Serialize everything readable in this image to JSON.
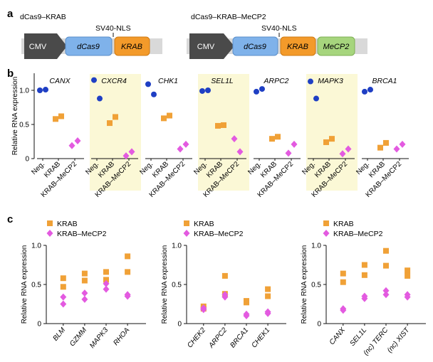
{
  "colors": {
    "neg": "#1f3fc4",
    "krab": "#f0a137",
    "mecp2": "#e35ae0",
    "highlight": "#fbf8d6",
    "cmv": "#4a4a4a",
    "dcas9": "#7fb2ea",
    "krab_box": "#f39a2a",
    "mecp2_box": "#a6d57d",
    "backbone": "#d9d9d9"
  },
  "panel_a": {
    "label": "a",
    "constructs": [
      {
        "title": "dCas9–KRAB",
        "nls_label": "SV40-NLS",
        "parts": [
          {
            "name": "CMV",
            "type": "promoter"
          },
          {
            "name": "dCas9",
            "type": "dcas9"
          },
          {
            "name": "KRAB",
            "type": "krab"
          }
        ]
      },
      {
        "title": "dCas9–KRAB–MeCP2",
        "nls_label": "SV40-NLS",
        "parts": [
          {
            "name": "CMV",
            "type": "promoter"
          },
          {
            "name": "dCas9",
            "type": "dcas9"
          },
          {
            "name": "KRAB",
            "type": "krab"
          },
          {
            "name": "MeCP2",
            "type": "mecp2"
          }
        ]
      }
    ]
  },
  "chart_data": [
    {
      "panel": "b",
      "type": "scatter",
      "ylabel": "Relative RNA expression",
      "ylim": [
        0,
        1.25
      ],
      "yticks": [
        "0",
        "0.5",
        "1.0"
      ],
      "categories": [
        "Neg.",
        "KRAB",
        "KRAB–MeCP2"
      ],
      "genes": [
        {
          "name": "CANX",
          "highlight": false,
          "neg": [
            1.0,
            1.01
          ],
          "krab": [
            0.58,
            0.62
          ],
          "mecp2": [
            0.19,
            0.26
          ]
        },
        {
          "name": "CXCR4",
          "highlight": true,
          "neg": [
            1.15,
            0.88
          ],
          "krab": [
            0.52,
            0.61
          ],
          "mecp2": [
            0.04,
            0.1
          ]
        },
        {
          "name": "CHK1",
          "highlight": false,
          "neg": [
            1.09,
            0.94
          ],
          "krab": [
            0.59,
            0.63
          ],
          "mecp2": [
            0.14,
            0.21
          ]
        },
        {
          "name": "SEL1L",
          "highlight": true,
          "neg": [
            0.99,
            1.0
          ],
          "krab": [
            0.48,
            0.49
          ],
          "mecp2": [
            0.29,
            0.1
          ]
        },
        {
          "name": "ARPC2",
          "highlight": false,
          "neg": [
            0.98,
            1.02
          ],
          "krab": [
            0.29,
            0.32
          ],
          "mecp2": [
            0.08,
            0.21
          ]
        },
        {
          "name": "MAPK3",
          "highlight": true,
          "neg": [
            1.13,
            0.88
          ],
          "krab": [
            0.24,
            0.29
          ],
          "mecp2": [
            0.07,
            0.14
          ]
        },
        {
          "name": "BRCA1",
          "highlight": false,
          "neg": [
            0.98,
            1.01
          ],
          "krab": [
            0.16,
            0.23
          ],
          "mecp2": [
            0.14,
            0.21
          ]
        }
      ]
    },
    {
      "panel": "c",
      "type": "scatter",
      "ylabel": "Relative RNA expression",
      "ylim": [
        0,
        1.0
      ],
      "yticks": [
        "0",
        "0.5",
        "1.0"
      ],
      "legend": [
        "KRAB",
        "KRAB–MeCP2"
      ],
      "subplots": [
        {
          "genes": [
            {
              "name": "BLM",
              "krab": [
                0.58,
                0.47
              ],
              "mecp2": [
                0.34,
                0.25
              ]
            },
            {
              "name": "GZMM",
              "krab": [
                0.64,
                0.55
              ],
              "mecp2": [
                0.39,
                0.31
              ]
            },
            {
              "name": "MAPK3",
              "krab": [
                0.66,
                0.56
              ],
              "mecp2": [
                0.51,
                0.44
              ]
            },
            {
              "name": "RHOA",
              "krab": [
                0.86,
                0.66
              ],
              "mecp2": [
                0.37,
                0.35
              ]
            }
          ]
        },
        {
          "genes": [
            {
              "name": "CHEK2",
              "krab": [
                0.22,
                0.19
              ],
              "mecp2": [
                0.2,
                0.18
              ]
            },
            {
              "name": "ARPC2",
              "krab": [
                0.61,
                0.38
              ],
              "mecp2": [
                0.37,
                0.34
              ]
            },
            {
              "name": "BRCA1",
              "krab": [
                0.29,
                0.27
              ],
              "mecp2": [
                0.12,
                0.1
              ]
            },
            {
              "name": "CHEK1",
              "krab": [
                0.44,
                0.35
              ],
              "mecp2": [
                0.15,
                0.13
              ]
            }
          ]
        },
        {
          "genes": [
            {
              "name": "CANX",
              "krab": [
                0.64,
                0.53
              ],
              "mecp2": [
                0.19,
                0.17
              ]
            },
            {
              "name": "SEL1L",
              "krab": [
                0.75,
                0.62
              ],
              "mecp2": [
                0.35,
                0.32
              ]
            },
            {
              "name": "(nc) TERC",
              "krab": [
                0.93,
                0.74
              ],
              "mecp2": [
                0.42,
                0.37
              ]
            },
            {
              "name": "(nc) XIST",
              "krab": [
                0.68,
                0.61
              ],
              "mecp2": [
                0.37,
                0.34
              ]
            }
          ]
        }
      ]
    }
  ]
}
